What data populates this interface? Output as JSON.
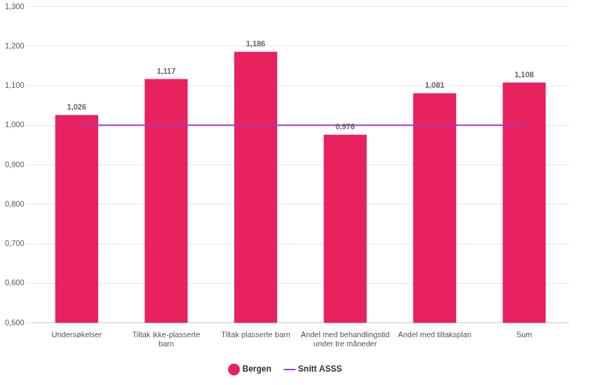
{
  "chart_data": {
    "type": "bar",
    "categories": [
      "Undersøkelser",
      "Tiltak ikke-plasserte barn",
      "Tiltak plasserte barn",
      "Andel med behandlingstid under tre måneder",
      "Andel med tiltaksplan",
      "Sum"
    ],
    "series": [
      {
        "name": "Bergen",
        "type": "bar",
        "color": "#e8215f",
        "values": [
          1.026,
          1.117,
          1.186,
          0.976,
          1.081,
          1.108
        ],
        "value_labels": [
          "1,026",
          "1,117",
          "1,186",
          "0,976",
          "1,081",
          "1,108"
        ]
      },
      {
        "name": "Snitt ASSS",
        "type": "line",
        "color": "#a03cc0",
        "values": [
          1.0,
          1.0,
          1.0,
          1.0,
          1.0,
          1.0
        ]
      }
    ],
    "ylim": [
      0.5,
      1.3
    ],
    "yticks": [
      {
        "value": 0.5,
        "label": "0,500"
      },
      {
        "value": 0.6,
        "label": "0,600"
      },
      {
        "value": 0.7,
        "label": "0,700"
      },
      {
        "value": 0.8,
        "label": "0,800"
      },
      {
        "value": 0.9,
        "label": "0,900"
      },
      {
        "value": 1.0,
        "label": "1,000"
      },
      {
        "value": 1.1,
        "label": "1,100"
      },
      {
        "value": 1.2,
        "label": "1,200"
      },
      {
        "value": 1.3,
        "label": "1,300"
      }
    ],
    "grid": true,
    "legend": "bottom",
    "data_labels": true
  }
}
